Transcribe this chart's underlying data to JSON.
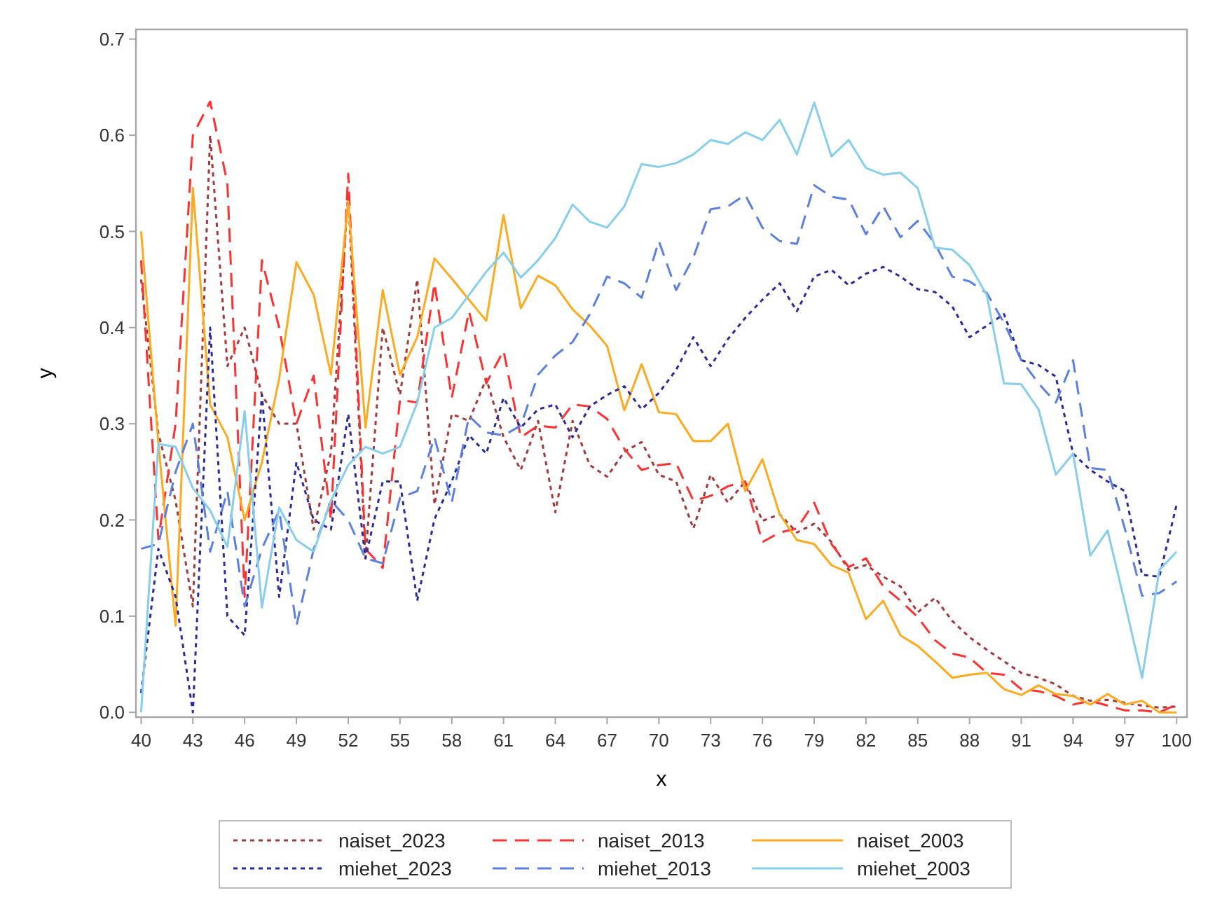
{
  "chart_data": {
    "type": "line",
    "xlabel": "x",
    "ylabel": "y",
    "x": [
      40,
      41,
      42,
      43,
      44,
      45,
      46,
      47,
      48,
      49,
      50,
      51,
      52,
      53,
      54,
      55,
      56,
      57,
      58,
      59,
      60,
      61,
      62,
      63,
      64,
      65,
      66,
      67,
      68,
      69,
      70,
      71,
      72,
      73,
      74,
      75,
      76,
      77,
      78,
      79,
      80,
      81,
      82,
      83,
      84,
      85,
      86,
      87,
      88,
      89,
      90,
      91,
      92,
      93,
      94,
      95,
      96,
      97,
      98,
      99,
      100
    ],
    "xlim": [
      39.7,
      100.6
    ],
    "xticks": [
      40,
      43,
      46,
      49,
      52,
      55,
      58,
      61,
      64,
      67,
      70,
      73,
      76,
      79,
      82,
      85,
      88,
      91,
      94,
      97,
      100
    ],
    "ylim": [
      -0.005,
      0.71
    ],
    "yticks": [
      {
        "value": 0,
        "label": "0.0"
      },
      0.1,
      0.2,
      0.3,
      0.4,
      0.5,
      0.6,
      0.7
    ],
    "grid": false,
    "legend": "bottom",
    "marker": "none",
    "series": [
      {
        "name": "naiset_2023",
        "color": "#a33a3a",
        "line_style": "dotted",
        "values": [
          0.45,
          0.29,
          0.22,
          0.11,
          0.6,
          0.36,
          0.4,
          0.33,
          0.3,
          0.3,
          0.19,
          0.27,
          0.54,
          0.16,
          0.4,
          0.33,
          0.45,
          0.216,
          0.31,
          0.303,
          0.347,
          0.286,
          0.252,
          0.303,
          0.208,
          0.303,
          0.257,
          0.245,
          0.271,
          0.281,
          0.247,
          0.24,
          0.191,
          0.247,
          0.218,
          0.24,
          0.199,
          0.206,
          0.187,
          0.196,
          0.177,
          0.148,
          0.153,
          0.141,
          0.131,
          0.104,
          0.119,
          0.095,
          0.078,
          0.065,
          0.053,
          0.041,
          0.036,
          0.029,
          0.017,
          0.012,
          0.013,
          0.01,
          0.007,
          0.005,
          0.006
        ]
      },
      {
        "name": "naiset_2013",
        "color": "#ff3030",
        "line_style": "dashed",
        "values": [
          0.47,
          0.18,
          0.3,
          0.6,
          0.635,
          0.55,
          0.12,
          0.47,
          0.4,
          0.3,
          0.35,
          0.2,
          0.56,
          0.17,
          0.15,
          0.325,
          0.322,
          0.446,
          0.327,
          0.417,
          0.342,
          0.376,
          0.286,
          0.298,
          0.296,
          0.32,
          0.318,
          0.305,
          0.274,
          0.252,
          0.257,
          0.259,
          0.22,
          0.225,
          0.235,
          0.24,
          0.177,
          0.187,
          0.191,
          0.218,
          0.175,
          0.151,
          0.16,
          0.131,
          0.116,
          0.099,
          0.075,
          0.061,
          0.057,
          0.041,
          0.039,
          0.024,
          0.022,
          0.017,
          0.008,
          0.012,
          0.007,
          0.002,
          0.002,
          0,
          0.008
        ]
      },
      {
        "name": "naiset_2003",
        "color": "#ffaa1e",
        "line_style": "solid",
        "values": [
          0.5,
          0.28,
          0.09,
          0.545,
          0.32,
          0.286,
          0.2,
          0.26,
          0.347,
          0.468,
          0.434,
          0.351,
          0.531,
          0.296,
          0.439,
          0.351,
          0.39,
          0.472,
          0.451,
          0.429,
          0.407,
          0.517,
          0.42,
          0.454,
          0.444,
          0.419,
          0.402,
          0.381,
          0.314,
          0.362,
          0.312,
          0.31,
          0.282,
          0.282,
          0.3,
          0.23,
          0.263,
          0.206,
          0.179,
          0.175,
          0.153,
          0.145,
          0.097,
          0.116,
          0.08,
          0.069,
          0.053,
          0.036,
          0.039,
          0.041,
          0.024,
          0.018,
          0.028,
          0.019,
          0.017,
          0.008,
          0.019,
          0.008,
          0.012,
          0,
          0
        ]
      },
      {
        "name": "miehet_2023",
        "color": "#2a2a9c",
        "line_style": "dotted",
        "values": [
          0.02,
          0.17,
          0.12,
          0,
          0.4,
          0.1,
          0.08,
          0.33,
          0.12,
          0.26,
          0.2,
          0.19,
          0.31,
          0.16,
          0.24,
          0.24,
          0.116,
          0.201,
          0.24,
          0.288,
          0.269,
          0.327,
          0.296,
          0.315,
          0.32,
          0.286,
          0.318,
          0.33,
          0.339,
          0.315,
          0.332,
          0.356,
          0.39,
          0.36,
          0.388,
          0.41,
          0.429,
          0.446,
          0.417,
          0.453,
          0.46,
          0.444,
          0.456,
          0.463,
          0.453,
          0.44,
          0.437,
          0.422,
          0.39,
          0.402,
          0.414,
          0.366,
          0.361,
          0.349,
          0.269,
          0.252,
          0.24,
          0.23,
          0.143,
          0.141,
          0.216
        ]
      },
      {
        "name": "miehet_2013",
        "color": "#5b80e2",
        "line_style": "dashed",
        "values": [
          0.17,
          0.175,
          0.25,
          0.3,
          0.167,
          0.23,
          0.11,
          0.17,
          0.21,
          0.09,
          0.17,
          0.22,
          0.2,
          0.16,
          0.155,
          0.223,
          0.23,
          0.286,
          0.218,
          0.308,
          0.291,
          0.288,
          0.298,
          0.351,
          0.371,
          0.385,
          0.414,
          0.453,
          0.446,
          0.431,
          0.49,
          0.439,
          0.473,
          0.523,
          0.526,
          0.538,
          0.504,
          0.49,
          0.487,
          0.548,
          0.536,
          0.533,
          0.497,
          0.526,
          0.494,
          0.511,
          0.487,
          0.453,
          0.448,
          0.436,
          0.405,
          0.366,
          0.342,
          0.322,
          0.366,
          0.254,
          0.252,
          0.191,
          0.121,
          0.124,
          0.136
        ]
      },
      {
        "name": "miehet_2003",
        "color": "#87cdec",
        "line_style": "solid",
        "values": [
          0,
          0.279,
          0.276,
          0.233,
          0.21,
          0.172,
          0.313,
          0.109,
          0.213,
          0.179,
          0.167,
          0.22,
          0.257,
          0.276,
          0.269,
          0.276,
          0.322,
          0.4,
          0.41,
          0.434,
          0.458,
          0.478,
          0.452,
          0.47,
          0.493,
          0.528,
          0.51,
          0.504,
          0.526,
          0.57,
          0.567,
          0.571,
          0.58,
          0.595,
          0.591,
          0.603,
          0.595,
          0.616,
          0.58,
          0.634,
          0.578,
          0.595,
          0.566,
          0.559,
          0.561,
          0.545,
          0.483,
          0.481,
          0.465,
          0.434,
          0.342,
          0.341,
          0.315,
          0.247,
          0.269,
          0.163,
          0.189,
          0.114,
          0.036,
          0.148,
          0.167
        ]
      }
    ]
  }
}
